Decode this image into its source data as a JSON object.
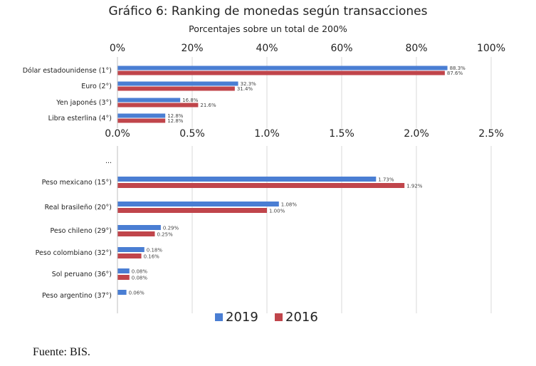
{
  "title": "Gráfico 6: Ranking de monedas según transacciones",
  "subtitle": "Porcentajes sobre un total de 200%",
  "source": "Fuente: BIS.",
  "colors": {
    "2019": "#4a7ed3",
    "2016": "#c0454b"
  },
  "chart_data": [
    {
      "type": "bar",
      "orientation": "horizontal",
      "categories": [
        "Dólar estadounidense (1°)",
        "Euro (2°)",
        "Yen japonés (3°)",
        "Libra esterlina (4°)"
      ],
      "series": [
        {
          "name": "2019",
          "values": [
            88.3,
            32.3,
            16.8,
            12.8
          ],
          "labels": [
            "88.3%",
            "32.3%",
            "16.8%",
            "12.8%"
          ]
        },
        {
          "name": "2016",
          "values": [
            87.6,
            31.4,
            21.6,
            12.8
          ],
          "labels": [
            "87.6%",
            "31.4%",
            "21.6%",
            "12.8%"
          ]
        }
      ],
      "xlim": [
        0,
        100
      ],
      "ticks": [
        "0%",
        "20%",
        "40%",
        "60%",
        "80%",
        "100%"
      ],
      "grid": true
    },
    {
      "type": "bar",
      "orientation": "horizontal",
      "categories": [
        "...",
        "Peso mexicano (15°)",
        "Real brasileño (20°)",
        "Peso chileno (29°)",
        "Peso colombiano (32°)",
        "Sol peruano (36°)",
        "Peso argentino (37°)"
      ],
      "series": [
        {
          "name": "2019",
          "values": [
            null,
            1.73,
            1.08,
            0.29,
            0.18,
            0.08,
            0.06
          ],
          "labels": [
            "",
            "1.73%",
            "1.08%",
            "0.29%",
            "0.18%",
            "0.08%",
            "0.06%"
          ]
        },
        {
          "name": "2016",
          "values": [
            null,
            1.92,
            1.0,
            0.25,
            0.16,
            0.08,
            null
          ],
          "labels": [
            "",
            "1.92%",
            "1.00%",
            "0.25%",
            "0.16%",
            "0.08%",
            ""
          ]
        }
      ],
      "xlim": [
        0,
        2.5
      ],
      "ticks": [
        "0.0%",
        "0.5%",
        "1.0%",
        "1.5%",
        "2.0%",
        "2.5%"
      ],
      "grid": true
    }
  ],
  "legend": [
    {
      "name": "2019",
      "color": "#4a7ed3"
    },
    {
      "name": "2016",
      "color": "#c0454b"
    }
  ]
}
